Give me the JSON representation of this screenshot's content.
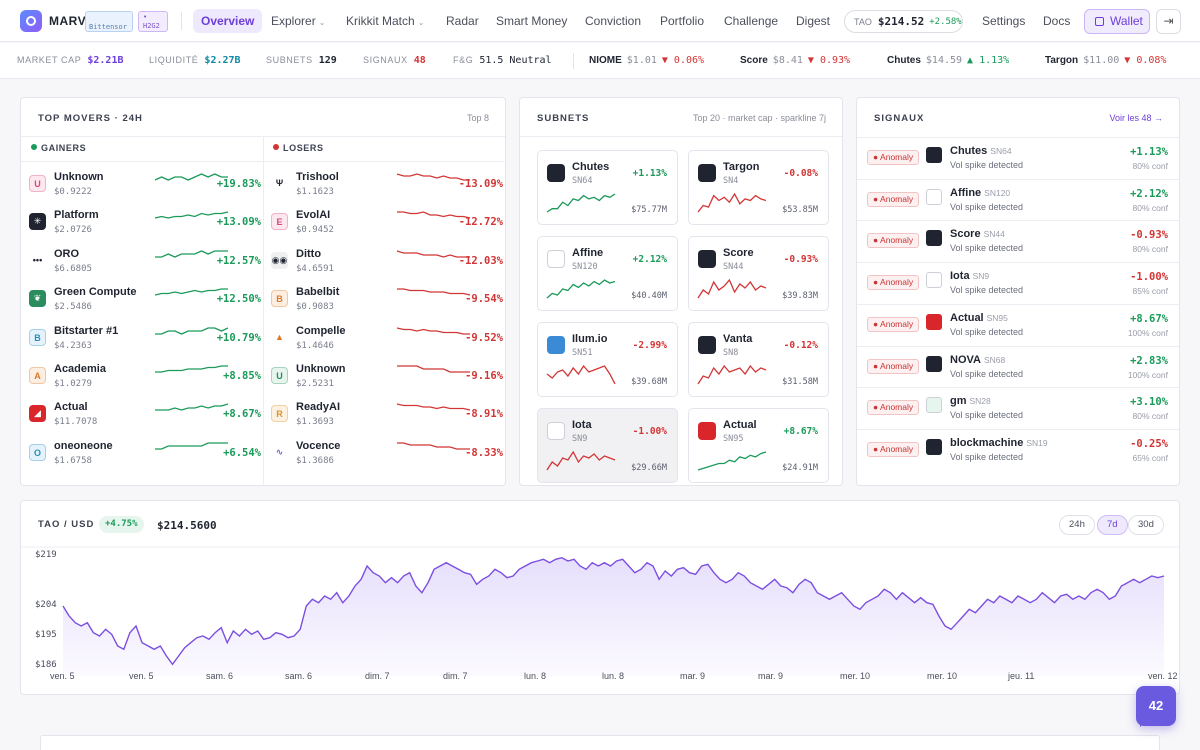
{
  "nav": {
    "brand": "MARVIN",
    "tag1": "Bittensor",
    "tag2": "H2G2",
    "items": [
      {
        "label": "Overview"
      },
      {
        "label": "Explorer"
      },
      {
        "label": "Krikkit Match"
      },
      {
        "label": "Radar"
      },
      {
        "label": "Smart Money"
      },
      {
        "label": "Conviction"
      },
      {
        "label": "Portfolio"
      },
      {
        "label": "Challenge"
      },
      {
        "label": "Digest"
      }
    ],
    "tao_label": "TAO",
    "tao_price": "$214.52",
    "tao_change": "+2.58%",
    "settings": "Settings",
    "docs": "Docs",
    "wallet": "Wallet",
    "logout_icon": "logout-icon"
  },
  "stats": {
    "market_cap_label": "MARKET CAP",
    "market_cap": "$2.21B",
    "liquidity_label": "LIQUIDITÉ",
    "liquidity": "$2.27B",
    "subnets_label": "SUBNETS",
    "subnets": "129",
    "signals_label": "SIGNAUX",
    "signals": "48",
    "fg_label": "F&G",
    "fg": "51.5 Neutral",
    "tickers": [
      {
        "name": "NIOME",
        "price": "$1.01",
        "change": "▼ 0.06%"
      },
      {
        "name": "Score",
        "price": "$8.41",
        "change": "▼ 0.93%"
      },
      {
        "name": "Chutes",
        "price": "$14.59",
        "change": "▲ 1.13%"
      },
      {
        "name": "Targon",
        "price": "$11.00",
        "change": "▼ 0.08%"
      }
    ]
  },
  "movers": {
    "title": "TOP MOVERS · 24H",
    "right": "Top 8",
    "gainers_label": "GAINERS",
    "losers_label": "LOSERS",
    "gainers": [
      {
        "name": "Unknown",
        "price": "$0.9222",
        "change": "+19.83%",
        "icon": "U",
        "spark": [
          6,
          5,
          6,
          5,
          5,
          6,
          5,
          4,
          5,
          4,
          5,
          5
        ]
      },
      {
        "name": "Platform",
        "price": "$2.0726",
        "change": "+13.09%",
        "icon": "✳",
        "spark": [
          7,
          6,
          7,
          6,
          6,
          5,
          6,
          4,
          5,
          4,
          4,
          3
        ]
      },
      {
        "name": "ORO",
        "price": "$6.6805",
        "change": "+12.57%",
        "icon": "•••",
        "spark": [
          6,
          6,
          5,
          6,
          5,
          5,
          5,
          4,
          5,
          4,
          4,
          4
        ]
      },
      {
        "name": "Green Compute",
        "price": "$2.5486",
        "change": "+12.50%",
        "icon": "❦",
        "spark": [
          7,
          6,
          6,
          5,
          6,
          5,
          4,
          5,
          4,
          4,
          3,
          3
        ]
      },
      {
        "name": "Bitstarter #1",
        "price": "$4.2363",
        "change": "+10.79%",
        "icon": "B",
        "spark": [
          6,
          6,
          5,
          5,
          6,
          5,
          5,
          5,
          4,
          4,
          5,
          4
        ]
      },
      {
        "name": "Academia",
        "price": "$1.0279",
        "change": "+8.85%",
        "icon": "A",
        "spark": [
          7,
          7,
          6,
          6,
          6,
          5,
          5,
          5,
          4,
          4,
          3,
          3
        ]
      },
      {
        "name": "Actual",
        "price": "$11.7078",
        "change": "+8.67%",
        "icon": "◢",
        "spark": [
          6,
          6,
          6,
          5,
          6,
          5,
          5,
          4,
          5,
          4,
          4,
          3
        ]
      },
      {
        "name": "oneoneone",
        "price": "$1.6758",
        "change": "+6.54%",
        "icon": "O",
        "spark": [
          6,
          6,
          5,
          5,
          5,
          5,
          5,
          5,
          4,
          4,
          4,
          4
        ]
      }
    ],
    "losers": [
      {
        "name": "Trishool",
        "price": "$1.1623",
        "change": "-13.09%",
        "icon": "Ψ",
        "spark": [
          3,
          4,
          4,
          3,
          4,
          4,
          5,
          4,
          5,
          5,
          6,
          6
        ]
      },
      {
        "name": "EvolAI",
        "price": "$0.9452",
        "change": "-12.72%",
        "icon": "E",
        "spark": [
          3,
          3,
          4,
          4,
          3,
          5,
          5,
          6,
          5,
          6,
          6,
          7
        ]
      },
      {
        "name": "Ditto",
        "price": "$4.6591",
        "change": "-12.03%",
        "icon": "◉◉",
        "spark": [
          3,
          4,
          4,
          4,
          5,
          5,
          5,
          6,
          5,
          6,
          6,
          6
        ]
      },
      {
        "name": "Babelbit",
        "price": "$0.9083",
        "change": "-9.54%",
        "icon": "B",
        "spark": [
          3,
          3,
          4,
          4,
          4,
          5,
          5,
          5,
          6,
          6,
          6,
          7
        ]
      },
      {
        "name": "Compelle",
        "price": "$1.4646",
        "change": "-9.52%",
        "icon": "▲",
        "spark": [
          3,
          4,
          4,
          5,
          4,
          5,
          5,
          6,
          6,
          6,
          7,
          7
        ]
      },
      {
        "name": "Unknown",
        "price": "$2.5231",
        "change": "-9.16%",
        "icon": "U",
        "spark": [
          4,
          4,
          4,
          4,
          5,
          5,
          5,
          5,
          6,
          6,
          6,
          6
        ]
      },
      {
        "name": "ReadyAI",
        "price": "$1.3693",
        "change": "-8.91%",
        "icon": "R",
        "spark": [
          3,
          4,
          4,
          4,
          5,
          5,
          6,
          5,
          6,
          6,
          6,
          7
        ]
      },
      {
        "name": "Vocence",
        "price": "$1.3686",
        "change": "-8.33%",
        "icon": "∿",
        "spark": [
          3,
          3,
          4,
          4,
          4,
          4,
          5,
          5,
          5,
          6,
          6,
          6
        ]
      }
    ]
  },
  "subnets": {
    "title": "SUBNETS",
    "right": "Top 20 · market cap · sparkline 7j",
    "cards": [
      {
        "name": "Chutes",
        "sn": "SN64",
        "change": "+1.13%",
        "mcap": "$75.77M",
        "spark": [
          14,
          12,
          12,
          8,
          10,
          6,
          7,
          4,
          6,
          5,
          7,
          4,
          5,
          3
        ]
      },
      {
        "name": "Targon",
        "sn": "SN4",
        "change": "-0.08%",
        "mcap": "$53.85M",
        "spark": [
          14,
          10,
          11,
          4,
          7,
          5,
          8,
          3,
          9,
          6,
          7,
          4,
          6,
          7
        ]
      },
      {
        "name": "Affine",
        "sn": "SN120",
        "change": "+2.12%",
        "mcap": "$40.40M",
        "spark": [
          14,
          11,
          12,
          8,
          9,
          5,
          7,
          4,
          6,
          3,
          5,
          2,
          4,
          3
        ]
      },
      {
        "name": "Score",
        "sn": "SN44",
        "change": "-0.93%",
        "mcap": "$39.83M",
        "spark": [
          12,
          8,
          10,
          4,
          8,
          6,
          3,
          9,
          5,
          7,
          4,
          8,
          6,
          7
        ]
      },
      {
        "name": "Ilum.io",
        "sn": "SN51",
        "change": "-2.99%",
        "mcap": "$39.68M",
        "spark": [
          8,
          10,
          7,
          6,
          9,
          5,
          8,
          4,
          7,
          6,
          5,
          4,
          8,
          13
        ]
      },
      {
        "name": "Vanta",
        "sn": "SN8",
        "change": "-0.12%",
        "mcap": "$31.58M",
        "spark": [
          13,
          9,
          10,
          5,
          8,
          4,
          7,
          6,
          5,
          8,
          4,
          7,
          5,
          6
        ]
      },
      {
        "name": "Iota",
        "sn": "SN9",
        "change": "-1.00%",
        "mcap": "$29.66M",
        "spark": [
          12,
          8,
          10,
          6,
          7,
          3,
          8,
          5,
          6,
          4,
          7,
          5,
          6,
          7
        ]
      },
      {
        "name": "Actual",
        "sn": "SN95",
        "change": "+8.67%",
        "mcap": "$24.91M",
        "spark": [
          16,
          15,
          14,
          13,
          12,
          12,
          10,
          11,
          8,
          9,
          7,
          8,
          6,
          5
        ]
      }
    ]
  },
  "signals": {
    "title": "SIGNAUX",
    "right": "Voir les 48 →",
    "badge": "Anomaly",
    "items": [
      {
        "name": "Chutes",
        "sn": "SN64",
        "desc": "Vol spike detected",
        "change": "+1.13%",
        "conf": "80% conf"
      },
      {
        "name": "Affine",
        "sn": "SN120",
        "desc": "Vol spike detected",
        "change": "+2.12%",
        "conf": "80% conf"
      },
      {
        "name": "Score",
        "sn": "SN44",
        "desc": "Vol spike detected",
        "change": "-0.93%",
        "conf": "80% conf"
      },
      {
        "name": "Iota",
        "sn": "SN9",
        "desc": "Vol spike detected",
        "change": "-1.00%",
        "conf": "85% conf"
      },
      {
        "name": "Actual",
        "sn": "SN95",
        "desc": "Vol spike detected",
        "change": "+8.67%",
        "conf": "100% conf"
      },
      {
        "name": "NOVA",
        "sn": "SN68",
        "desc": "Vol spike detected",
        "change": "+2.83%",
        "conf": "100% conf"
      },
      {
        "name": "gm",
        "sn": "SN28",
        "desc": "Vol spike detected",
        "change": "+3.10%",
        "conf": "80% conf"
      },
      {
        "name": "blockmachine",
        "sn": "SN19",
        "desc": "Vol spike detected",
        "change": "-0.25%",
        "conf": "65% conf"
      }
    ]
  },
  "chart": {
    "title": "TAO / USD",
    "badge": "+4.75%",
    "price": "$214.5600",
    "ranges": [
      "24h",
      "7d",
      "30d"
    ],
    "active_range": "7d",
    "fab": "42"
  },
  "chart_data": {
    "type": "area",
    "title": "TAO / USD",
    "y_ticks": [
      "$219",
      "$204",
      "$195",
      "$186"
    ],
    "x_ticks": [
      "ven. 5",
      "ven. 5",
      "sam. 6",
      "sam. 6",
      "dim. 7",
      "dim. 7",
      "lun. 8",
      "lun. 8",
      "mar. 9",
      "mar. 9",
      "mer. 10",
      "mer. 10",
      "jeu. 11",
      "ven. 12"
    ],
    "ylim": [
      186,
      219
    ],
    "values": [
      204.0,
      201.0,
      199.0,
      198.0,
      199.0,
      196.0,
      195.0,
      197.0,
      195.5,
      192.0,
      191.0,
      196.0,
      198.0,
      193.0,
      192.0,
      191.0,
      192.0,
      189.0,
      186.5,
      189.0,
      191.5,
      193.0,
      194.5,
      195.0,
      194.0,
      196.0,
      197.5,
      193.0,
      196.5,
      195.0,
      197.0,
      195.5,
      196.5,
      194.0,
      194.5,
      196.0,
      195.5,
      194.5,
      195.0,
      197.0,
      204.0,
      206.0,
      205.0,
      207.0,
      206.0,
      208.0,
      205.0,
      207.0,
      210.0,
      212.0,
      216.0,
      214.0,
      213.0,
      211.0,
      212.5,
      211.0,
      213.0,
      214.0,
      210.0,
      208.0,
      211.0,
      215.0,
      216.0,
      217.0,
      216.0,
      215.0,
      214.0,
      213.5,
      210.5,
      212.0,
      213.0,
      215.0,
      214.0,
      212.5,
      213.0,
      215.0,
      216.0,
      217.0,
      217.5,
      218.0,
      217.0,
      218.0,
      218.5,
      217.5,
      218.0,
      216.0,
      215.0,
      217.0,
      216.0,
      217.0,
      216.0,
      217.5,
      218.0,
      216.0,
      214.0,
      215.0,
      217.0,
      216.0,
      212.0,
      214.5,
      213.0,
      215.0,
      215.5,
      214.0,
      213.5,
      216.0,
      216.5,
      214.0,
      212.0,
      211.0,
      212.0,
      214.0,
      213.0,
      211.0,
      210.0,
      209.0,
      210.5,
      212.0,
      210.0,
      209.5,
      208.0,
      210.5,
      212.0,
      211.0,
      208.0,
      207.0,
      206.0,
      207.0,
      208.0,
      206.0,
      204.0,
      203.0,
      205.0,
      206.0,
      207.0,
      209.0,
      208.0,
      206.0,
      208.0,
      206.5,
      205.0,
      206.5,
      205.0,
      204.5,
      201.0,
      198.0,
      197.0,
      199.0,
      201.0,
      203.0,
      202.0,
      204.0,
      206.0,
      205.0,
      207.0,
      206.0,
      205.0,
      207.0,
      206.0,
      205.0,
      206.0,
      208.0,
      206.5,
      205.0,
      207.0,
      207.5,
      206.0,
      207.0,
      206.0,
      208.0,
      209.0,
      208.0,
      206.0,
      207.0,
      210.0,
      211.0,
      212.0,
      211.0,
      212.0,
      213.0,
      212.5,
      213.0
    ]
  }
}
